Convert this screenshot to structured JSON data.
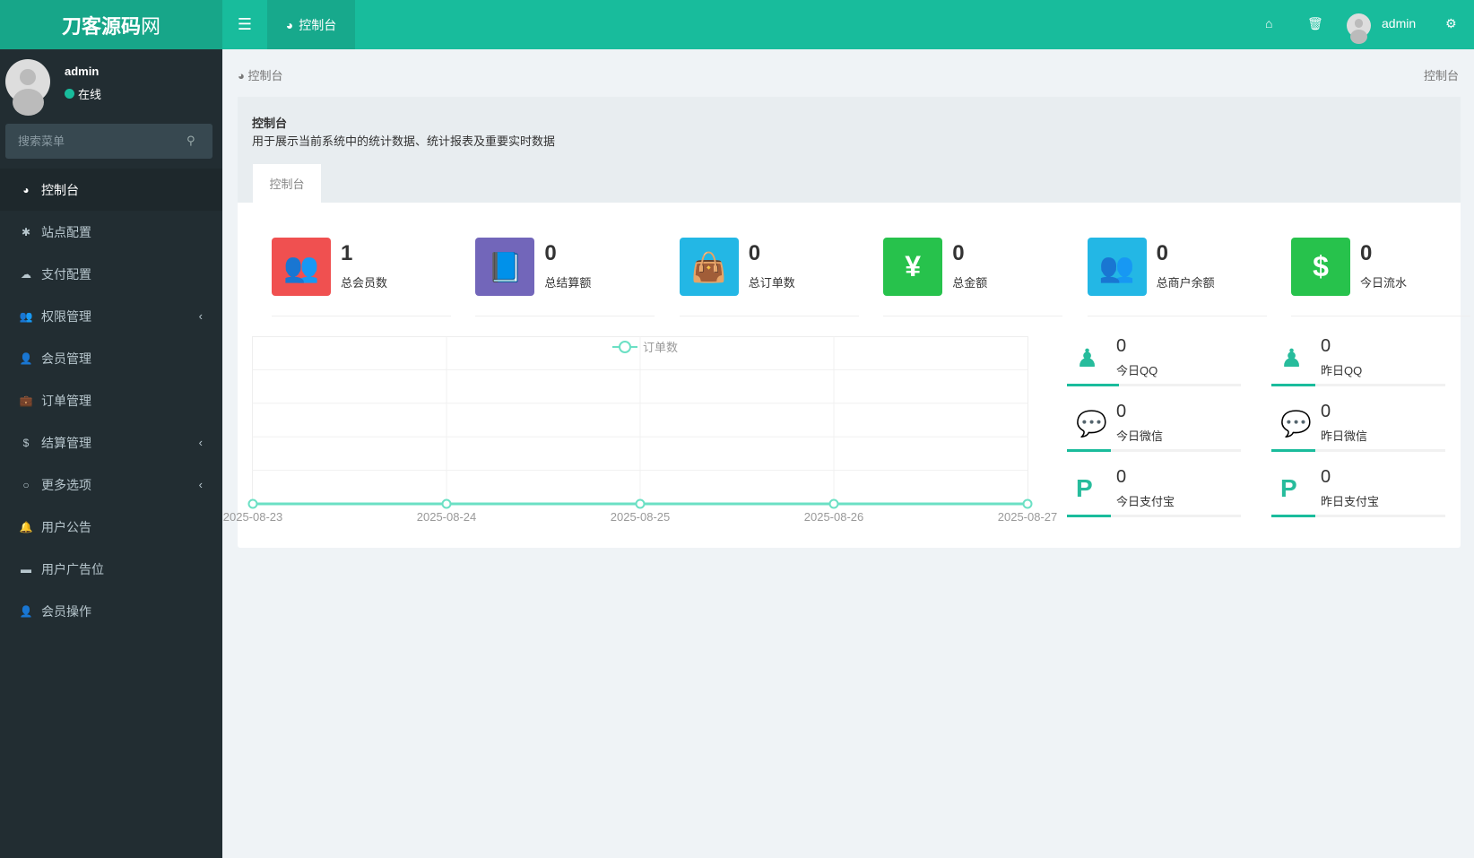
{
  "header": {
    "logo_bold": "刀客源码",
    "logo_thin": "网",
    "tab": "控制台",
    "user": "admin",
    "icons": [
      "menu-icon",
      "home-icon",
      "trash-icon",
      "cogs-icon"
    ]
  },
  "sidebar": {
    "user": "admin",
    "status": "在线",
    "search_placeholder": "搜索菜单",
    "items": [
      {
        "label": "控制台",
        "icon": "dashboard-icon",
        "active": true
      },
      {
        "label": "站点配置",
        "icon": "gear-icon"
      },
      {
        "label": "支付配置",
        "icon": "cloud-icon"
      },
      {
        "label": "权限管理",
        "icon": "group-icon",
        "submenu": true
      },
      {
        "label": "会员管理",
        "icon": "user-icon"
      },
      {
        "label": "订单管理",
        "icon": "briefcase-icon"
      },
      {
        "label": "结算管理",
        "icon": "dollar-icon",
        "submenu": true
      },
      {
        "label": "更多选项",
        "icon": "circle-icon",
        "submenu": true
      },
      {
        "label": "用户公告",
        "icon": "bell-icon"
      },
      {
        "label": "用户广告位",
        "icon": "archive-icon"
      },
      {
        "label": "会员操作",
        "icon": "user-md-icon"
      }
    ]
  },
  "breadcrumb": {
    "left": "控制台",
    "right": "控制台"
  },
  "panel": {
    "title": "控制台",
    "description": "用于展示当前系统中的统计数据、统计报表及重要实时数据",
    "tab": "控制台"
  },
  "stats": [
    {
      "value": "1",
      "label": "总会员数",
      "color": "#f05050",
      "icon": "users-icon",
      "glyph": "👥"
    },
    {
      "value": "0",
      "label": "总结算额",
      "color": "#7266ba",
      "icon": "book-icon",
      "glyph": "📘"
    },
    {
      "value": "0",
      "label": "总订单数",
      "color": "#23b7e5",
      "icon": "shopping-bag-icon",
      "glyph": "👜"
    },
    {
      "value": "0",
      "label": "总金额",
      "color": "#27c24c",
      "icon": "yen-icon",
      "glyph": "¥"
    },
    {
      "value": "0",
      "label": "总商户余额",
      "color": "#23b7e5",
      "icon": "users-icon",
      "glyph": "👥"
    },
    {
      "value": "0",
      "label": "今日流水",
      "color": "#27c24c",
      "icon": "dollar-icon",
      "glyph": "$"
    }
  ],
  "mini_stats": [
    {
      "value": "0",
      "label": "今日QQ",
      "icon": "qq-icon",
      "progress": 0.3
    },
    {
      "value": "0",
      "label": "昨日QQ",
      "icon": "qq-icon",
      "progress": 0.25
    },
    {
      "value": "0",
      "label": "今日微信",
      "icon": "wechat-icon",
      "progress": 0.25
    },
    {
      "value": "0",
      "label": "昨日微信",
      "icon": "wechat-icon",
      "progress": 0.25
    },
    {
      "value": "0",
      "label": "今日支付宝",
      "icon": "paypal-icon",
      "progress": 0.25
    },
    {
      "value": "0",
      "label": "昨日支付宝",
      "icon": "paypal-icon",
      "progress": 0.25
    }
  ],
  "chart_data": {
    "type": "line",
    "x": [
      "2025-08-23",
      "2025-08-24",
      "2025-08-25",
      "2025-08-26",
      "2025-08-27"
    ],
    "series": [
      {
        "name": "订单数",
        "values": [
          0,
          0,
          0,
          0,
          0
        ],
        "color": "#6be0c4"
      }
    ],
    "legend": "top-center",
    "grid": true
  }
}
